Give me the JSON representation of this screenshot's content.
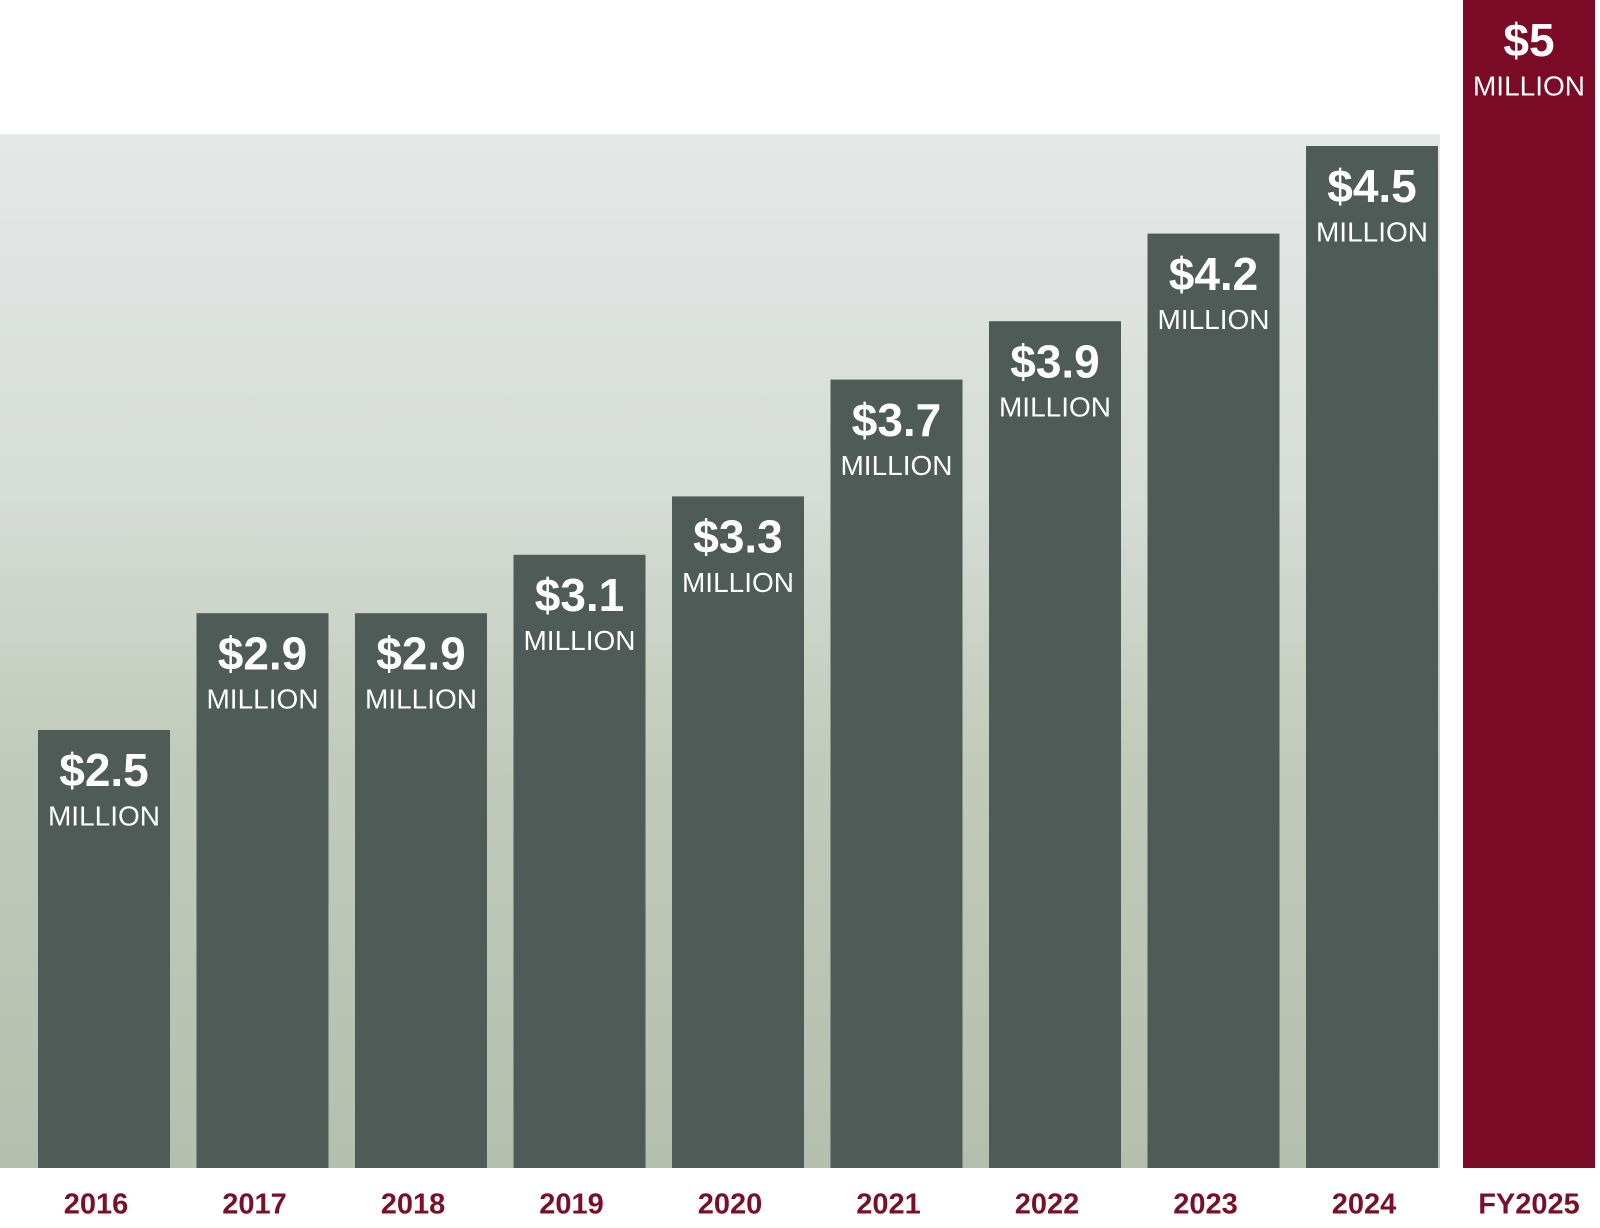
{
  "chart_data": {
    "type": "bar",
    "categories": [
      "2016",
      "2017",
      "2018",
      "2019",
      "2020",
      "2021",
      "2022",
      "2023",
      "2024",
      "FY2025"
    ],
    "values": [
      2.5,
      2.9,
      2.9,
      3.1,
      3.3,
      3.7,
      3.9,
      4.2,
      4.5,
      5
    ],
    "value_labels": [
      "$2.5",
      "$2.9",
      "$2.9",
      "$3.1",
      "$3.3",
      "$3.7",
      "$3.9",
      "$4.2",
      "$4.5",
      "$5"
    ],
    "unit": "MILLION",
    "colors": [
      "#4e5b56",
      "#4e5b56",
      "#4e5b56",
      "#4e5b56",
      "#4e5b56",
      "#4e5b56",
      "#4e5b56",
      "#4e5b56",
      "#4e5b56",
      "#7a0a26"
    ],
    "ylim": [
      1,
      5
    ]
  }
}
